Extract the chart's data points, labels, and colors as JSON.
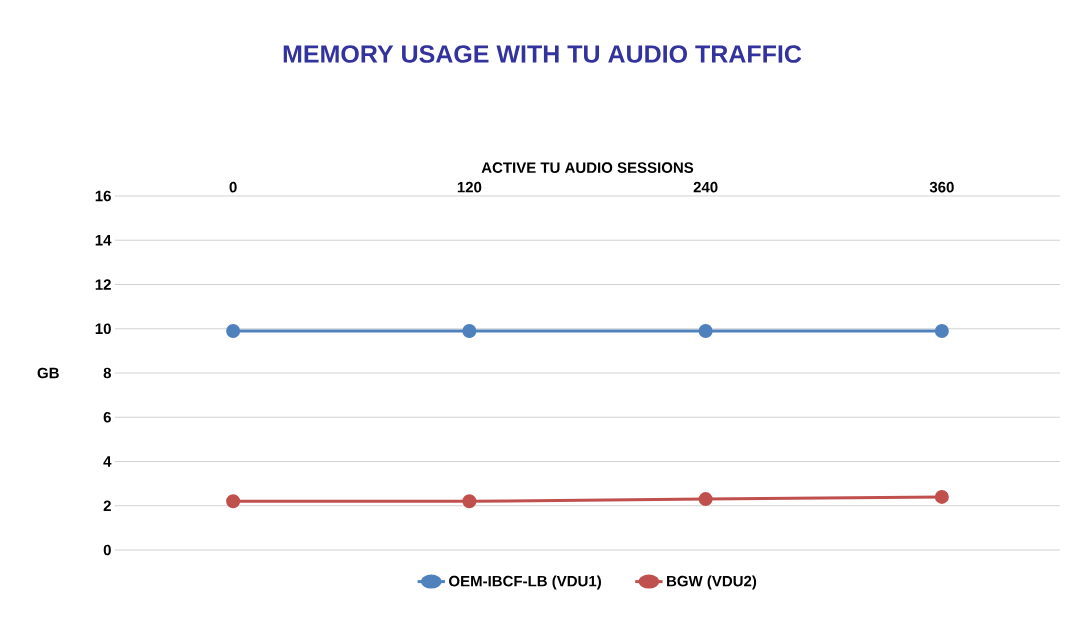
{
  "chart_data": {
    "type": "line",
    "title": "MEMORY USAGE WITH TU AUDIO TRAFFIC",
    "xlabel": "ACTIVE TU AUDIO SESSIONS",
    "ylabel": "GB",
    "categories": [
      "0",
      "120",
      "240",
      "360"
    ],
    "series": [
      {
        "name": "OEM-IBCF-LB (VDU1)",
        "color": "#4f81bd",
        "values": [
          9.9,
          9.9,
          9.9,
          9.9
        ]
      },
      {
        "name": "BGW (VDU2)",
        "color": "#c0504d",
        "values": [
          2.2,
          2.2,
          2.3,
          2.4
        ]
      }
    ],
    "ylim": [
      0,
      16
    ],
    "yticks": [
      0,
      2,
      4,
      6,
      8,
      10,
      12,
      14,
      16
    ],
    "grid": "y",
    "legend": "bottom",
    "marker": "circle",
    "line_style": "solid"
  }
}
